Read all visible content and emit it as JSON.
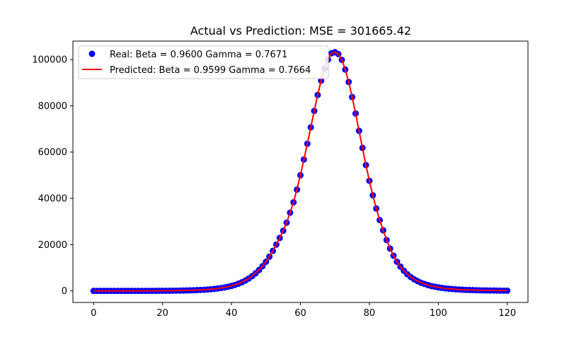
{
  "chart_data": {
    "type": "scatter",
    "title": "Actual vs Prediction: MSE = 301665.42",
    "xlabel": "",
    "ylabel": "",
    "xlim": [
      -6,
      126
    ],
    "ylim": [
      -5000,
      108000
    ],
    "xticks": [
      0,
      20,
      40,
      60,
      80,
      100,
      120
    ],
    "yticks": [
      0,
      20000,
      40000,
      60000,
      80000,
      100000
    ],
    "grid": false,
    "legend_position": "top-left",
    "series": [
      {
        "name": "Real: Beta = 0.9600 Gamma = 0.7671",
        "kind": "scatter",
        "color": "#0000ff",
        "x": [
          0,
          1,
          2,
          3,
          4,
          5,
          6,
          7,
          8,
          9,
          10,
          11,
          12,
          13,
          14,
          15,
          16,
          17,
          18,
          19,
          20,
          21,
          22,
          23,
          24,
          25,
          26,
          27,
          28,
          29,
          30,
          31,
          32,
          33,
          34,
          35,
          36,
          37,
          38,
          39,
          40,
          41,
          42,
          43,
          44,
          45,
          46,
          47,
          48,
          49,
          50,
          51,
          52,
          53,
          54,
          55,
          56,
          57,
          58,
          59,
          60,
          61,
          62,
          63,
          64,
          65,
          66,
          67,
          68,
          69,
          70,
          71,
          72,
          73,
          74,
          75,
          76,
          77,
          78,
          79,
          80,
          81,
          82,
          83,
          84,
          85,
          86,
          87,
          88,
          89,
          90,
          91,
          92,
          93,
          94,
          95,
          96,
          97,
          98,
          99,
          100,
          101,
          102,
          103,
          104,
          105,
          106,
          107,
          108,
          109,
          110,
          111,
          112,
          113,
          114,
          115,
          116,
          117,
          118,
          119,
          120
        ],
        "y": [
          10,
          10,
          10,
          10,
          10,
          10,
          10,
          10,
          10,
          10,
          10,
          10,
          10,
          10,
          10,
          20,
          20,
          30,
          30,
          40,
          50,
          60,
          70,
          90,
          110,
          130,
          160,
          190,
          230,
          280,
          340,
          410,
          490,
          590,
          710,
          860,
          1030,
          1240,
          1490,
          1790,
          2150,
          2580,
          3100,
          3720,
          4460,
          5340,
          6380,
          7600,
          9030,
          10690,
          12600,
          14800,
          17300,
          20000,
          22900,
          26000,
          29500,
          33800,
          38300,
          43800,
          50000,
          56800,
          63600,
          70700,
          77800,
          84700,
          90900,
          96100,
          100000,
          102700,
          103200,
          102400,
          99900,
          95700,
          90300,
          83800,
          76700,
          69200,
          61800,
          54400,
          47600,
          41300,
          35600,
          30600,
          26200,
          22000,
          18300,
          15200,
          12600,
          10500,
          8700,
          7200,
          6000,
          5000,
          4200,
          3500,
          3000,
          2500,
          2100,
          1800,
          1500,
          1300,
          1100,
          950,
          820,
          700,
          600,
          520,
          450,
          390,
          340,
          290,
          250,
          220,
          190,
          170,
          150,
          130,
          110,
          100,
          90
        ]
      },
      {
        "name": "Predicted: Beta = 0.9599 Gamma = 0.7664",
        "kind": "line",
        "color": "#ff0000",
        "x": [
          0,
          5,
          10,
          15,
          20,
          25,
          30,
          33,
          36,
          39,
          42,
          45,
          48,
          50,
          52,
          54,
          56,
          58,
          60,
          61,
          62,
          63,
          64,
          65,
          66,
          67,
          68,
          69,
          70,
          71,
          72,
          73,
          74,
          75,
          76,
          77,
          78,
          79,
          80,
          81,
          82,
          83,
          84,
          85,
          86,
          87,
          88,
          89,
          90,
          92,
          94,
          96,
          98,
          100,
          102,
          104,
          106,
          108,
          110,
          112,
          114,
          116,
          118,
          120
        ],
        "y": [
          10,
          10,
          10,
          20,
          50,
          130,
          340,
          590,
          1030,
          1790,
          3100,
          5340,
          9030,
          12600,
          17300,
          22900,
          29500,
          38300,
          50000,
          56800,
          63600,
          70700,
          77800,
          84700,
          90900,
          96100,
          100000,
          102700,
          103200,
          102400,
          99900,
          95700,
          90300,
          83800,
          76700,
          69200,
          61800,
          54400,
          47600,
          41300,
          35600,
          30600,
          26200,
          22000,
          18300,
          15200,
          12600,
          10500,
          8700,
          6000,
          4200,
          3000,
          2100,
          1500,
          1100,
          820,
          600,
          450,
          340,
          250,
          190,
          150,
          110,
          90
        ]
      }
    ]
  }
}
